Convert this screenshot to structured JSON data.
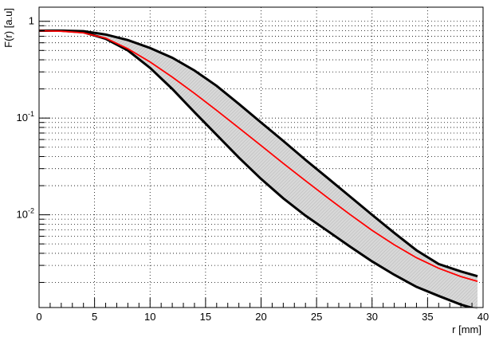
{
  "chart_data": {
    "type": "area",
    "title": "",
    "xlabel": "r [mm]",
    "ylabel": "F(r) [a.u]",
    "xlim": [
      0,
      40
    ],
    "ylim": [
      0.0011,
      1.4
    ],
    "y_scale": "log",
    "grid": true,
    "grid_style": "dotted",
    "x_ticks": [
      0,
      5,
      10,
      15,
      20,
      25,
      30,
      35,
      40
    ],
    "x_tick_labels": [
      "0",
      "5",
      "10",
      "15",
      "20",
      "25",
      "30",
      "35",
      "40"
    ],
    "y_major_ticks": [
      {
        "value": 1,
        "base": "1",
        "exp": ""
      },
      {
        "value": 0.1,
        "base": "10",
        "exp": "-1"
      },
      {
        "value": 0.01,
        "base": "10",
        "exp": "-2"
      }
    ],
    "band": {
      "fill_color": "#d8d8d8",
      "x": [
        0,
        2,
        4,
        6,
        8,
        10,
        12,
        14,
        16,
        18,
        20,
        22,
        24,
        26,
        28,
        30,
        32,
        34,
        36,
        38,
        39.5
      ],
      "upper": [
        0.8,
        0.8,
        0.79,
        0.73,
        0.64,
        0.53,
        0.42,
        0.31,
        0.215,
        0.14,
        0.09,
        0.058,
        0.037,
        0.024,
        0.0155,
        0.01,
        0.0065,
        0.0043,
        0.0031,
        0.0026,
        0.00232
      ],
      "lower": [
        0.8,
        0.8,
        0.77,
        0.66,
        0.5,
        0.33,
        0.2,
        0.115,
        0.067,
        0.039,
        0.0235,
        0.0148,
        0.0098,
        0.0068,
        0.0047,
        0.0033,
        0.0024,
        0.0018,
        0.00145,
        0.00118,
        0.00105
      ]
    },
    "series": [
      {
        "color": "#ff0000",
        "x": [
          0,
          2,
          4,
          6,
          8,
          10,
          12,
          14,
          16,
          18,
          20,
          22,
          24,
          26,
          28,
          30,
          32,
          34,
          36,
          38,
          39.5
        ],
        "values": [
          0.8,
          0.79,
          0.76,
          0.67,
          0.52,
          0.38,
          0.265,
          0.18,
          0.12,
          0.079,
          0.052,
          0.034,
          0.0225,
          0.015,
          0.0101,
          0.0069,
          0.0049,
          0.0036,
          0.0028,
          0.0023,
          0.00205
        ]
      }
    ]
  }
}
